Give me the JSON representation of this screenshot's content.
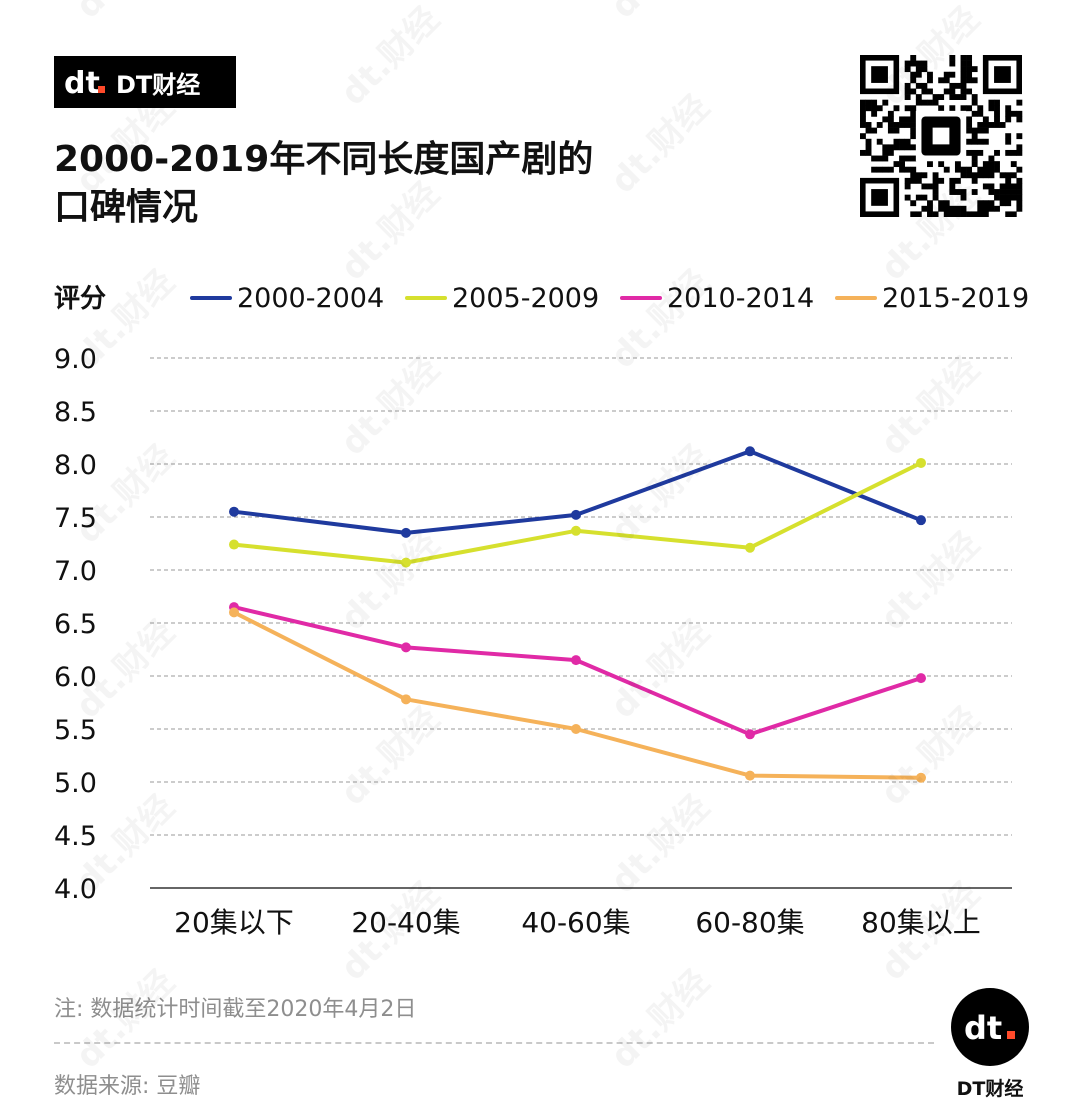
{
  "brand": {
    "mark": "dt",
    "name": "DT财经"
  },
  "title_lines": [
    "2000-2019年不同长度国产剧的",
    "口碑情况"
  ],
  "chart_data": {
    "type": "line",
    "ylabel": "评分",
    "categories": [
      "20集以下",
      "20-40集",
      "40-60集",
      "60-80集",
      "80集以上"
    ],
    "ylim": [
      4.0,
      9.0
    ],
    "yticks": [
      "9.0",
      "8.5",
      "8.0",
      "7.5",
      "7.0",
      "6.5",
      "6.0",
      "5.5",
      "5.0",
      "4.5",
      "4.0"
    ],
    "grid": true,
    "legend_position": "top",
    "series": [
      {
        "name": "2000-2004",
        "color": "#1f3a9e",
        "values": [
          7.55,
          7.35,
          7.52,
          8.12,
          7.47
        ]
      },
      {
        "name": "2005-2009",
        "color": "#d6e02e",
        "values": [
          7.24,
          7.07,
          7.37,
          7.21,
          8.01
        ]
      },
      {
        "name": "2010-2014",
        "color": "#e02aa6",
        "values": [
          6.65,
          6.27,
          6.15,
          5.45,
          5.98
        ]
      },
      {
        "name": "2015-2019",
        "color": "#f5b25a",
        "values": [
          6.6,
          5.78,
          5.5,
          5.06,
          5.04
        ]
      }
    ]
  },
  "footer": {
    "note": "注: 数据统计时间截至2020年4月2日",
    "source": "数据来源: 豆瓣",
    "logo_mark": "dt",
    "logo_text": "DT财经"
  },
  "watermark": {
    "text": "dt.财经"
  }
}
